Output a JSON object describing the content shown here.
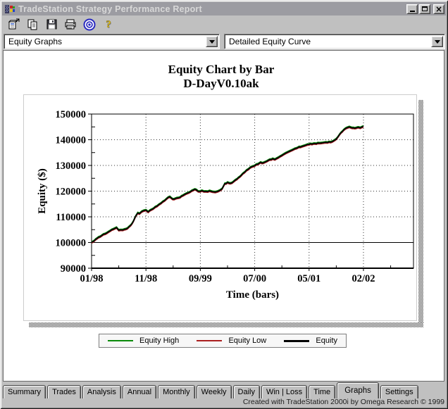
{
  "window": {
    "title": "TradeStation Strategy Performance Report",
    "controls": [
      "minimize",
      "maximize",
      "close"
    ]
  },
  "toolbar": {
    "icons": [
      "report-properties-icon",
      "copy-icon",
      "save-icon",
      "print-icon",
      "omega-logo-icon",
      "help-icon"
    ]
  },
  "selectors": {
    "report_category": "Equity Graphs",
    "graph_type": "Detailed Equity Curve"
  },
  "chart_data": {
    "type": "line",
    "title": "Equity Chart by Bar",
    "subtitle": "D-DayV0.10ak",
    "xlabel": "Time (bars)",
    "ylabel": "Equity ($)",
    "ylim": [
      90000,
      150000
    ],
    "ytick_interval": 10000,
    "xtick_labels": [
      "01/98",
      "11/98",
      "09/99",
      "07/00",
      "05/01",
      "02/02"
    ],
    "x_axis_extension": 0.92,
    "baseline_value": 100000,
    "grid": "dotted",
    "legend_position": "bottom",
    "series": [
      {
        "name": "Equity High",
        "color": "#0a8a0a"
      },
      {
        "name": "Equity Low",
        "color": "#aa2020"
      },
      {
        "name": "Equity",
        "color": "#000000"
      }
    ],
    "equity_points": [
      [
        0.0,
        100100
      ],
      [
        0.05,
        100700
      ],
      [
        0.1,
        101600
      ],
      [
        0.16,
        102300
      ],
      [
        0.22,
        103200
      ],
      [
        0.28,
        103700
      ],
      [
        0.34,
        104500
      ],
      [
        0.4,
        105200
      ],
      [
        0.46,
        105800
      ],
      [
        0.5,
        104800
      ],
      [
        0.55,
        104900
      ],
      [
        0.6,
        105100
      ],
      [
        0.66,
        105500
      ],
      [
        0.72,
        106700
      ],
      [
        0.77,
        108300
      ],
      [
        0.81,
        110200
      ],
      [
        0.85,
        111500
      ],
      [
        0.88,
        111200
      ],
      [
        0.92,
        112000
      ],
      [
        0.96,
        112400
      ],
      [
        1.0,
        112600
      ],
      [
        1.04,
        111900
      ],
      [
        1.1,
        112800
      ],
      [
        1.17,
        113800
      ],
      [
        1.24,
        114800
      ],
      [
        1.31,
        115900
      ],
      [
        1.38,
        117000
      ],
      [
        1.44,
        117800
      ],
      [
        1.49,
        116900
      ],
      [
        1.54,
        117100
      ],
      [
        1.6,
        117400
      ],
      [
        1.68,
        118300
      ],
      [
        1.76,
        119200
      ],
      [
        1.84,
        120100
      ],
      [
        1.9,
        120700
      ],
      [
        1.96,
        119900
      ],
      [
        2.03,
        120200
      ],
      [
        2.1,
        119900
      ],
      [
        2.17,
        120100
      ],
      [
        2.25,
        119700
      ],
      [
        2.33,
        120000
      ],
      [
        2.4,
        120900
      ],
      [
        2.45,
        122900
      ],
      [
        2.5,
        123400
      ],
      [
        2.55,
        123000
      ],
      [
        2.62,
        123900
      ],
      [
        2.7,
        125200
      ],
      [
        2.78,
        126800
      ],
      [
        2.85,
        128100
      ],
      [
        2.92,
        129200
      ],
      [
        3.0,
        129900
      ],
      [
        3.06,
        130500
      ],
      [
        3.11,
        131200
      ],
      [
        3.16,
        131000
      ],
      [
        3.22,
        131600
      ],
      [
        3.28,
        132300
      ],
      [
        3.33,
        132600
      ],
      [
        3.37,
        132300
      ],
      [
        3.43,
        133000
      ],
      [
        3.5,
        133900
      ],
      [
        3.57,
        134800
      ],
      [
        3.64,
        135500
      ],
      [
        3.71,
        136200
      ],
      [
        3.79,
        136900
      ],
      [
        3.87,
        137400
      ],
      [
        3.94,
        137900
      ],
      [
        4.0,
        138200
      ],
      [
        4.08,
        138500
      ],
      [
        4.16,
        138700
      ],
      [
        4.25,
        138800
      ],
      [
        4.34,
        138900
      ],
      [
        4.42,
        139200
      ],
      [
        4.49,
        140100
      ],
      [
        4.54,
        141400
      ],
      [
        4.59,
        142800
      ],
      [
        4.64,
        143900
      ],
      [
        4.69,
        144600
      ],
      [
        4.74,
        145000
      ],
      [
        4.79,
        144600
      ],
      [
        4.84,
        144500
      ],
      [
        4.89,
        144800
      ],
      [
        4.94,
        144600
      ],
      [
        5.0,
        145200
      ]
    ]
  },
  "legend": {
    "entries": [
      {
        "label": "Equity High",
        "color": "#0a8a0a",
        "weight": 2
      },
      {
        "label": "Equity Low",
        "color": "#aa2020",
        "weight": 2
      },
      {
        "label": "Equity",
        "color": "#000000",
        "weight": 3
      }
    ]
  },
  "tabs": {
    "items": [
      "Summary",
      "Trades",
      "Analysis",
      "Annual",
      "Monthly",
      "Weekly",
      "Daily",
      "Win | Loss",
      "Time",
      "Graphs",
      "Settings"
    ],
    "active": "Graphs"
  },
  "statusbar": {
    "text": "Created with TradeStation 2000i by Omega Research © 1999"
  },
  "colors": {
    "window_bg": "#c0c0c0",
    "titlebar_bg": "#9c9ca2",
    "titlebar_text": "#d8d8d8",
    "page_bg": "#ffffff",
    "grid_color": "#333333"
  }
}
